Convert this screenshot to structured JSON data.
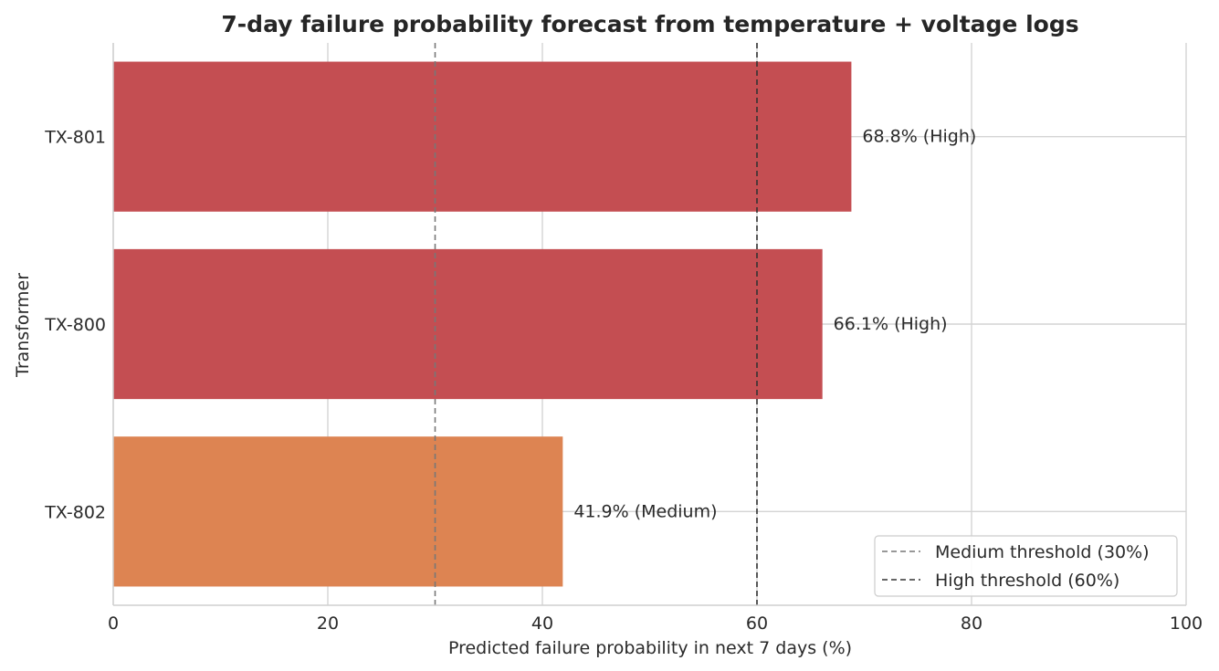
{
  "chart_data": {
    "type": "bar",
    "orientation": "horizontal",
    "title": "7-day failure probability forecast from temperature + voltage logs",
    "xlabel": "Predicted failure probability in next 7 days (%)",
    "ylabel": "Transformer",
    "xlim": [
      0,
      100
    ],
    "xticks": [
      "0",
      "20",
      "40",
      "60",
      "80",
      "100"
    ],
    "grid": true,
    "categories": [
      "TX-801",
      "TX-800",
      "TX-802"
    ],
    "values": [
      68.8,
      66.1,
      41.9
    ],
    "risk_levels": [
      "High",
      "High",
      "Medium"
    ],
    "data_labels": [
      "68.8% (High)",
      "66.1% (High)",
      "41.9% (Medium)"
    ],
    "bar_colors": [
      "#c44e52",
      "#c44e52",
      "#dd8452"
    ],
    "thresholds": [
      {
        "value": 30,
        "label": "Medium threshold (30%)",
        "color": "#777777"
      },
      {
        "value": 60,
        "label": "High threshold (60%)",
        "color": "#333333"
      }
    ],
    "legend_position": "bottom-right"
  }
}
